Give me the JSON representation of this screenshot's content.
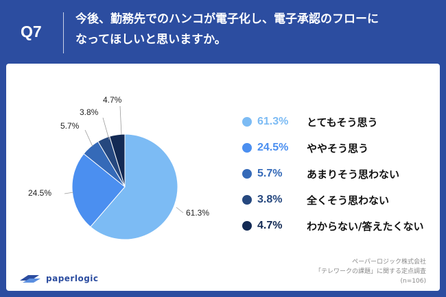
{
  "header": {
    "question_number": "Q7",
    "question_line1": "今後、勤務先でのハンコが電子化し、電子承認のフローに",
    "question_line2": "なってほしいと思いますか。"
  },
  "chart_data": {
    "type": "pie",
    "unit": "%",
    "slices": [
      {
        "label": "とてもそう思う",
        "value": 61.3,
        "display": "61.3%",
        "color": "#7cbbf4"
      },
      {
        "label": "ややそう思う",
        "value": 24.5,
        "display": "24.5%",
        "color": "#4b8ff0"
      },
      {
        "label": "あまりそう思わない",
        "value": 5.7,
        "display": "5.7%",
        "color": "#356ab8"
      },
      {
        "label": "全くそう思わない",
        "value": 3.8,
        "display": "3.8%",
        "color": "#26487f"
      },
      {
        "label": "わからない/答えたくない",
        "value": 4.7,
        "display": "4.7%",
        "color": "#132a54"
      }
    ],
    "legend_position": "right"
  },
  "logo": {
    "text": "paperlogic",
    "icon": "paperlogic-logo-icon"
  },
  "footer": {
    "line1": "ペーパーロジック株式会社",
    "line2": "「テレワークの課題」に関する定点調査",
    "line3": "(n=106)"
  }
}
